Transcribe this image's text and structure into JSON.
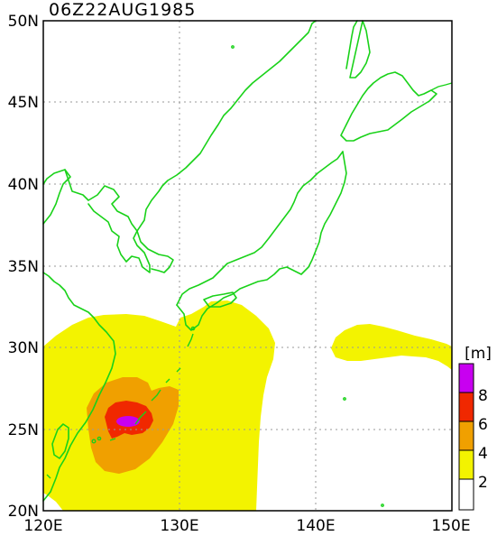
{
  "title": "06Z22AUG1985",
  "map": {
    "lat_labels": [
      "50N",
      "45N",
      "40N",
      "35N",
      "30N",
      "25N",
      "20N"
    ],
    "lon_labels": [
      "120E",
      "130E",
      "140E",
      "150E"
    ],
    "lon_range": [
      120,
      150
    ],
    "lat_range": [
      20,
      50
    ]
  },
  "legend": {
    "unit": "[m]",
    "levels": [
      "2",
      "4",
      "6",
      "8"
    ],
    "colors": [
      "#ffffff",
      "#f3f300",
      "#f0a000",
      "#f02800",
      "#c800f0"
    ]
  }
}
